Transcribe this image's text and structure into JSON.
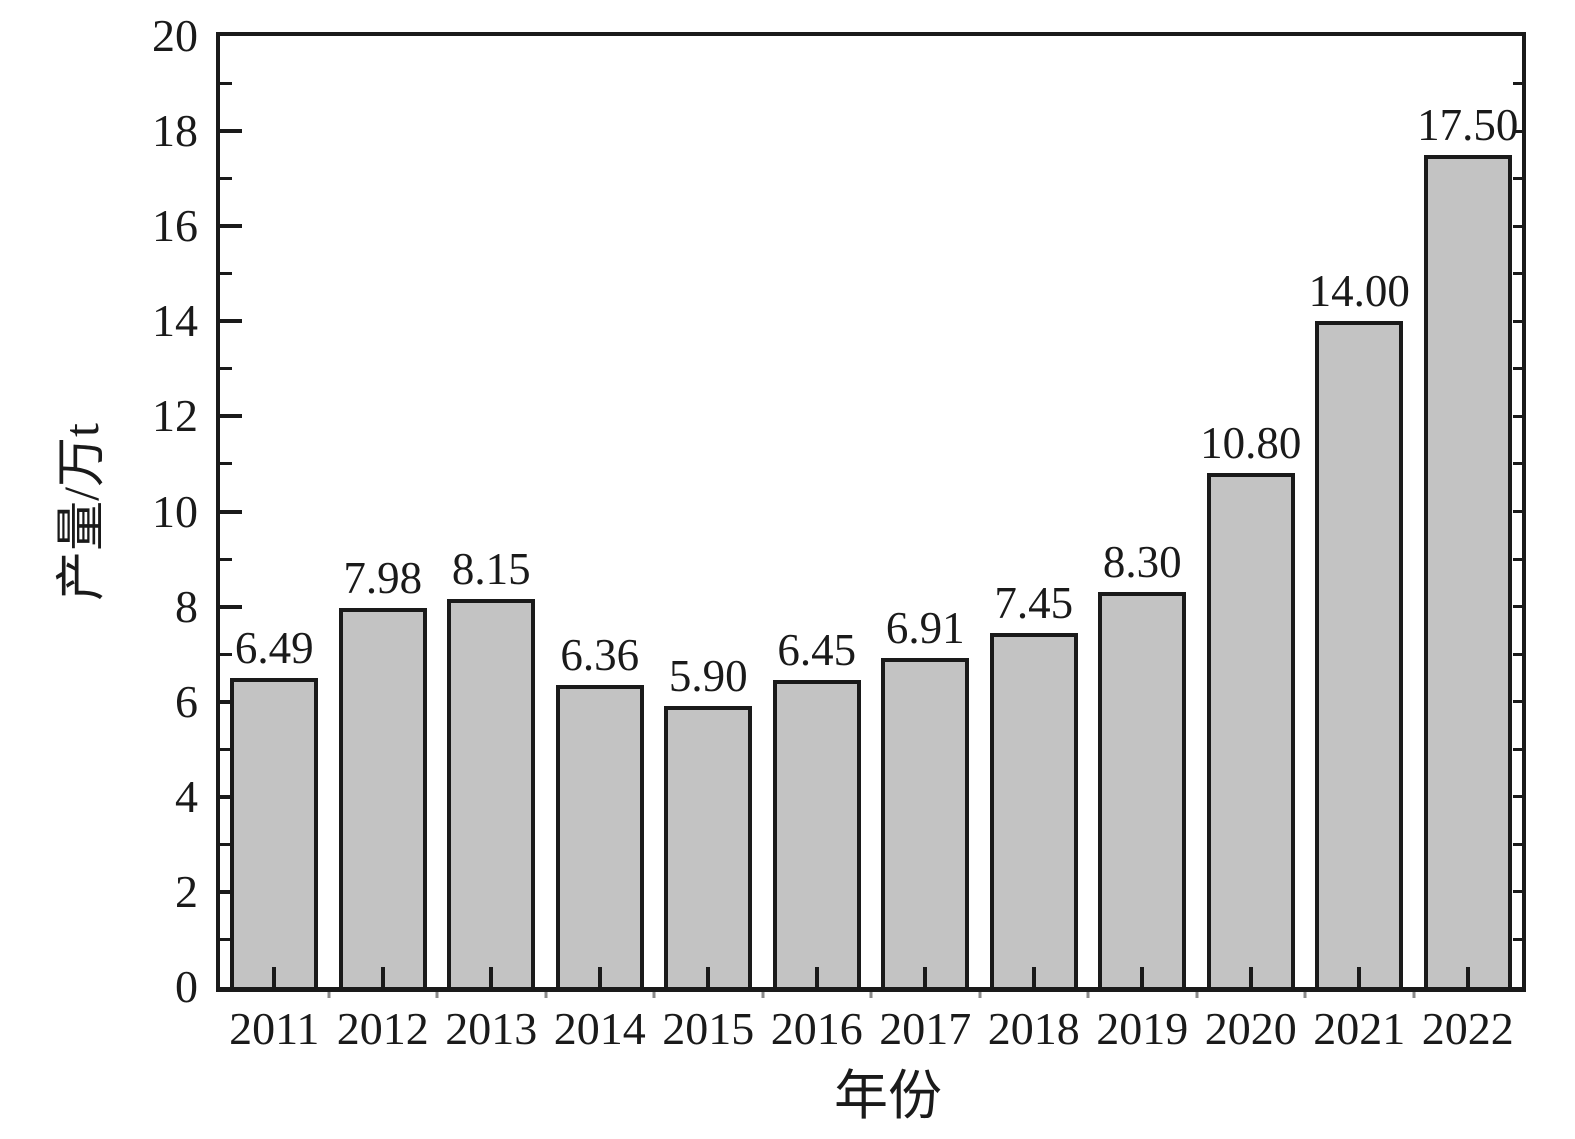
{
  "chart_data": {
    "type": "bar",
    "title": "",
    "xlabel": "年份",
    "ylabel": "产量/万t",
    "categories": [
      "2011",
      "2012",
      "2013",
      "2014",
      "2015",
      "2016",
      "2017",
      "2018",
      "2019",
      "2020",
      "2021",
      "2022"
    ],
    "values": [
      6.49,
      7.98,
      8.15,
      6.36,
      5.9,
      6.45,
      6.91,
      7.45,
      8.3,
      10.8,
      14.0,
      17.5
    ],
    "bar_labels": [
      "6.49",
      "7.98",
      "8.15",
      "6.36",
      "5.90",
      "6.45",
      "6.91",
      "7.45",
      "8.30",
      "10.80",
      "14.00",
      "17.50"
    ],
    "ylim": [
      0,
      20
    ],
    "ytick_interval": 2,
    "ytick_labels": [
      "0",
      "2",
      "4",
      "6",
      "8",
      "10",
      "12",
      "14",
      "16",
      "18",
      "20"
    ],
    "yminor_interval": 1,
    "grid": false,
    "legend": null,
    "bar_fill_color": "#c3c3c3",
    "bar_edge_color": "#1a1a1a",
    "axis_color": "#1a1a1a",
    "text_color": "#1a1a1a"
  }
}
